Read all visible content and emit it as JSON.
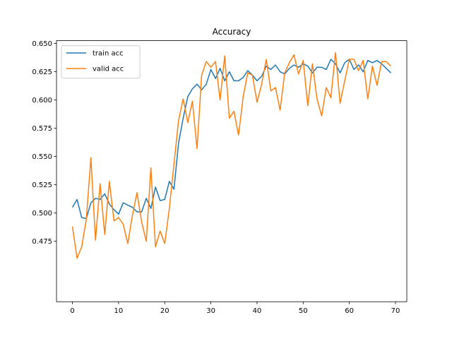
{
  "chart_data": {
    "type": "line",
    "title": "Accuracy",
    "xlabel": "",
    "ylabel": "",
    "xlim": [
      -3.45,
      72.45
    ],
    "ylim": [
      0.4215,
      0.6525
    ],
    "xticks": [
      0,
      10,
      20,
      30,
      40,
      50,
      60,
      70
    ],
    "yticks": [
      0.475,
      0.5,
      0.525,
      0.55,
      0.575,
      0.6,
      0.625,
      0.65
    ],
    "ytick_labels": [
      "0.475",
      "0.500",
      "0.525",
      "0.550",
      "0.575",
      "0.600",
      "0.625",
      "0.650"
    ],
    "grid": false,
    "legend_position": "upper-left",
    "series": [
      {
        "name": "train acc",
        "color": "#1f77b4",
        "values": [
          0.505,
          0.512,
          0.496,
          0.495,
          0.509,
          0.513,
          0.512,
          0.517,
          0.508,
          0.503,
          0.499,
          0.509,
          0.507,
          0.505,
          0.501,
          0.501,
          0.513,
          0.504,
          0.523,
          0.511,
          0.512,
          0.528,
          0.521,
          0.562,
          0.584,
          0.603,
          0.61,
          0.614,
          0.609,
          0.614,
          0.627,
          0.619,
          0.628,
          0.617,
          0.625,
          0.617,
          0.617,
          0.62,
          0.626,
          0.622,
          0.617,
          0.621,
          0.63,
          0.627,
          0.631,
          0.625,
          0.623,
          0.628,
          0.631,
          0.629,
          0.632,
          0.63,
          0.624,
          0.629,
          0.629,
          0.627,
          0.636,
          0.632,
          0.624,
          0.633,
          0.636,
          0.627,
          0.631,
          0.625,
          0.635,
          0.633,
          0.635,
          0.632,
          0.628,
          0.624
        ]
      },
      {
        "name": "valid acc",
        "color": "#ff7f0e",
        "values": [
          0.488,
          0.46,
          0.47,
          0.494,
          0.549,
          0.476,
          0.526,
          0.481,
          0.528,
          0.493,
          0.496,
          0.49,
          0.473,
          0.498,
          0.518,
          0.492,
          0.475,
          0.54,
          0.47,
          0.484,
          0.473,
          0.504,
          0.543,
          0.582,
          0.601,
          0.58,
          0.599,
          0.557,
          0.622,
          0.634,
          0.629,
          0.634,
          0.6,
          0.639,
          0.584,
          0.59,
          0.569,
          0.603,
          0.624,
          0.622,
          0.598,
          0.614,
          0.636,
          0.608,
          0.611,
          0.591,
          0.624,
          0.633,
          0.64,
          0.623,
          0.635,
          0.595,
          0.632,
          0.601,
          0.586,
          0.611,
          0.602,
          0.642,
          0.597,
          0.617,
          0.636,
          0.636,
          0.626,
          0.635,
          0.601,
          0.63,
          0.613,
          0.634,
          0.634,
          0.63
        ]
      }
    ]
  }
}
